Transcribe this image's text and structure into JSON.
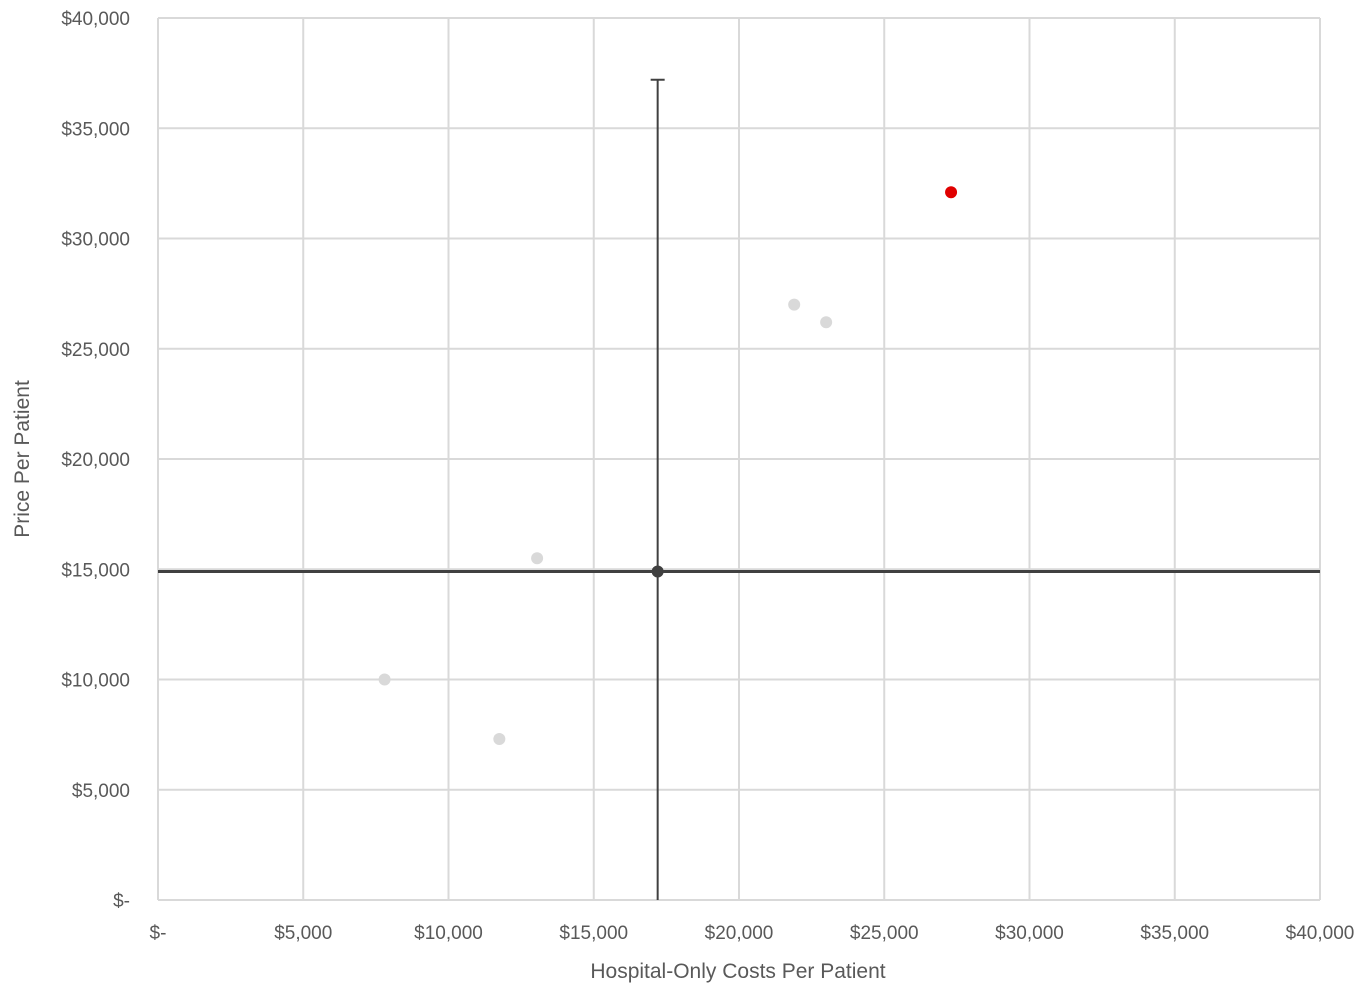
{
  "chart_data": {
    "type": "scatter",
    "xlabel": "Hospital-Only Costs Per Patient",
    "ylabel": "Price Per Patient",
    "xlim": [
      0,
      40000
    ],
    "ylim": [
      0,
      40000
    ],
    "x_ticks": [
      {
        "value": 0,
        "label": "$-"
      },
      {
        "value": 5000,
        "label": "$5,000"
      },
      {
        "value": 10000,
        "label": "$10,000"
      },
      {
        "value": 15000,
        "label": "$15,000"
      },
      {
        "value": 20000,
        "label": "$20,000"
      },
      {
        "value": 25000,
        "label": "$25,000"
      },
      {
        "value": 30000,
        "label": "$30,000"
      },
      {
        "value": 35000,
        "label": "$35,000"
      },
      {
        "value": 40000,
        "label": "$40,000"
      }
    ],
    "y_ticks": [
      {
        "value": 0,
        "label": "$-"
      },
      {
        "value": 5000,
        "label": "$5,000"
      },
      {
        "value": 10000,
        "label": "$10,000"
      },
      {
        "value": 15000,
        "label": "$15,000"
      },
      {
        "value": 20000,
        "label": "$20,000"
      },
      {
        "value": 25000,
        "label": "$25,000"
      },
      {
        "value": 30000,
        "label": "$30,000"
      },
      {
        "value": 35000,
        "label": "$35,000"
      },
      {
        "value": 40000,
        "label": "$40,000"
      }
    ],
    "grid": true,
    "legend": "none",
    "series": [
      {
        "color": "#d9d9d9",
        "points": [
          {
            "x": 7800,
            "y": 10000
          },
          {
            "x": 11750,
            "y": 7300
          },
          {
            "x": 13050,
            "y": 15500
          },
          {
            "x": 21900,
            "y": 27000
          },
          {
            "x": 23000,
            "y": 26200
          }
        ]
      },
      {
        "color": "#e00000",
        "points": [
          {
            "x": 27300,
            "y": 32100
          }
        ]
      },
      {
        "color": "#404040",
        "points": [
          {
            "x": 17200,
            "y": 14900
          }
        ]
      }
    ],
    "reference_lines": {
      "color": "#404040",
      "vertical": {
        "x": 17200,
        "y_top": 37200
      },
      "horizontal": {
        "y": 14900
      }
    },
    "colors": {
      "grid": "#d9d9d9",
      "tick_text": "#595959",
      "reference": "#404040"
    }
  }
}
